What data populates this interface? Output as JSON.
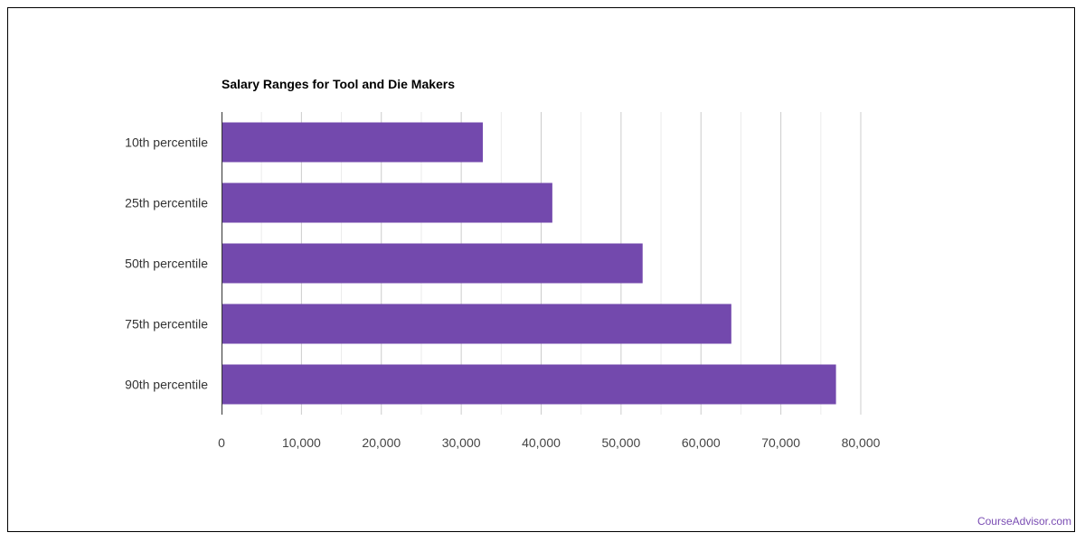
{
  "chart_data": {
    "type": "bar",
    "orientation": "horizontal",
    "title": "Salary Ranges for Tool and Die Makers",
    "xlabel": "",
    "ylabel": "",
    "categories": [
      "10th percentile",
      "25th percentile",
      "50th percentile",
      "75th percentile",
      "90th percentile"
    ],
    "values": [
      32700,
      41400,
      52700,
      63800,
      76900
    ],
    "xlim": [
      0,
      80000
    ],
    "xticks": [
      "0",
      "10,000",
      "20,000",
      "30,000",
      "40,000",
      "50,000",
      "60,000",
      "70,000",
      "80,000"
    ],
    "bar_color": "#7349ad",
    "grid": true,
    "legend": "none"
  },
  "watermark": {
    "text": "CourseAdvisor.com",
    "color": "#7a4db3"
  }
}
